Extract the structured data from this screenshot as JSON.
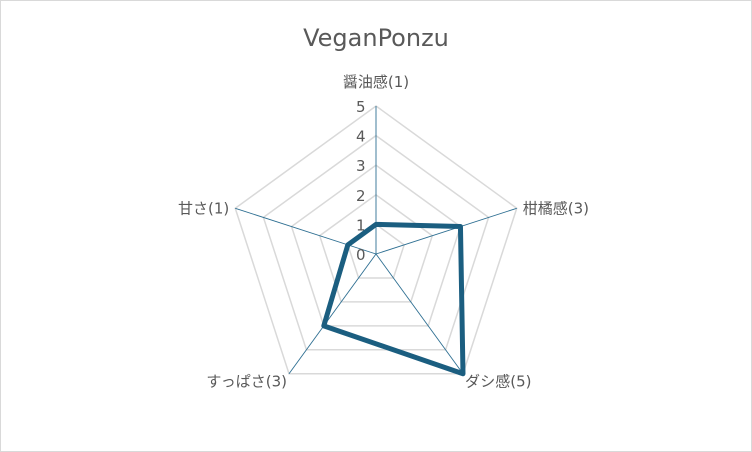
{
  "chart_data": {
    "type": "radar",
    "title": "VeganPonzu",
    "categories": [
      "醤油感(1)",
      "柑橘感(3)",
      "ダシ感(5)",
      "すっぱさ(3)",
      "甘さ(1)"
    ],
    "series": [
      {
        "values": [
          1,
          3,
          5,
          3,
          1
        ]
      }
    ],
    "rlim": [
      0,
      5
    ],
    "ticks": [
      "0",
      "1",
      "2",
      "3",
      "4",
      "5"
    ],
    "grid": true,
    "legend": "none",
    "colors": {
      "series": "#1b5e80",
      "grid": "#d9d9d9",
      "axis": "#2e6f92"
    }
  }
}
